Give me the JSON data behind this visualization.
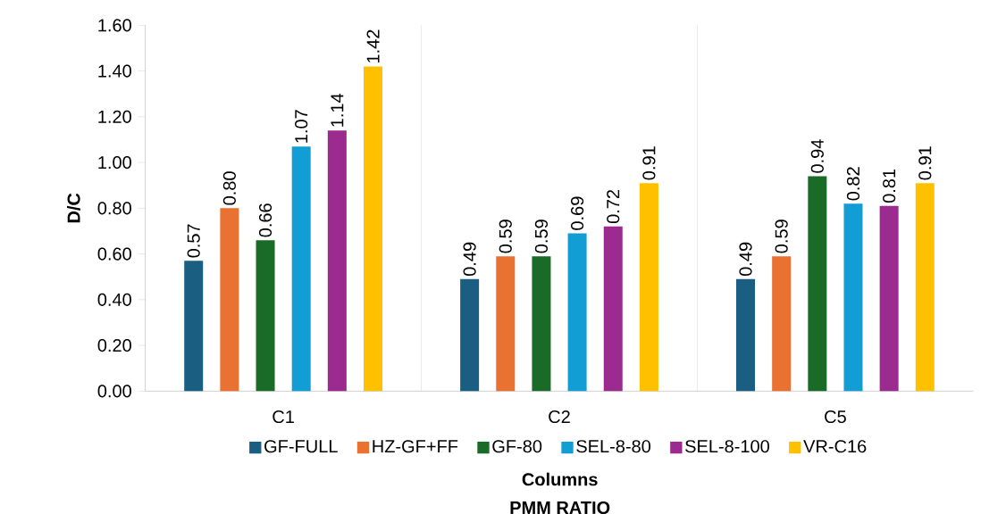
{
  "chart_data": {
    "type": "bar",
    "categories": [
      "C1",
      "C2",
      "C5"
    ],
    "ylabel": "D/C",
    "xlabel": "PMM RATIO",
    "annotations": [
      "Columns"
    ],
    "ylim": [
      0,
      1.6
    ],
    "yticks": [
      {
        "value": 0,
        "label": "0.00"
      },
      {
        "value": 0.2,
        "label": "0.20"
      },
      {
        "value": 0.4,
        "label": "0.40"
      },
      {
        "value": 0.6,
        "label": "0.60"
      },
      {
        "value": 0.8,
        "label": "0.80"
      },
      {
        "value": 1.0,
        "label": "1.00"
      },
      {
        "value": 1.2,
        "label": "1.20"
      },
      {
        "value": 1.4,
        "label": "1.40"
      },
      {
        "value": 1.6,
        "label": "1.60"
      }
    ],
    "legend": "bottom",
    "series": [
      {
        "name": "GF-FULL",
        "color": "#1a5e82",
        "values": [
          0.57,
          0.49,
          0.49
        ],
        "value_labels": [
          "0.57",
          "0.49",
          "0.49"
        ]
      },
      {
        "name": "HZ-GF+FF",
        "color": "#e97132",
        "values": [
          0.8,
          0.59,
          0.59
        ],
        "value_labels": [
          "0.80",
          "0.59",
          "0.59"
        ]
      },
      {
        "name": "GF-80",
        "color": "#1b6b28",
        "values": [
          0.66,
          0.59,
          0.94
        ],
        "value_labels": [
          "0.66",
          "0.59",
          "0.94"
        ]
      },
      {
        "name": "SEL-8-80",
        "color": "#129dd4",
        "values": [
          1.07,
          0.69,
          0.82
        ],
        "value_labels": [
          "1.07",
          "0.69",
          "0.82"
        ]
      },
      {
        "name": "SEL-8-100",
        "color": "#9c2b90",
        "values": [
          1.14,
          0.72,
          0.81
        ],
        "value_labels": [
          "1.14",
          "0.72",
          "0.81"
        ]
      },
      {
        "name": "VR-C16",
        "color": "#ffc000",
        "values": [
          1.42,
          0.91,
          0.91
        ],
        "value_labels": [
          "1.42",
          "0.91",
          "0.91"
        ]
      }
    ]
  }
}
